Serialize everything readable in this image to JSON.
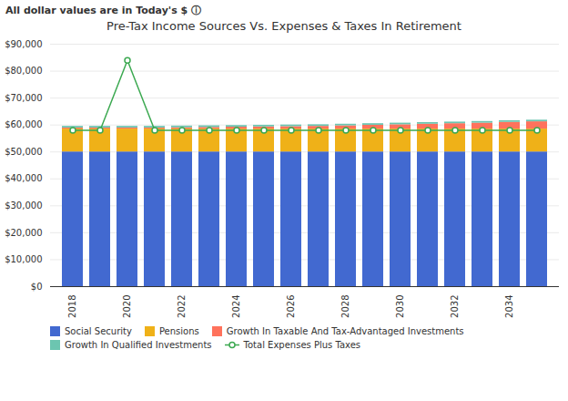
{
  "chart_data": {
    "type": "bar",
    "title": "Pre-Tax Income Sources Vs. Expenses & Taxes In Retirement",
    "subtitle": "All dollar values are in Today's $ ⓘ",
    "categories": [
      "2018",
      null,
      "2020",
      null,
      "2022",
      null,
      "2024",
      null,
      "2026",
      null,
      "2028",
      null,
      "2030",
      null,
      "2032",
      null,
      "2034",
      null
    ],
    "stacked": true,
    "series": [
      {
        "name": "Social Security",
        "type": "bar",
        "values": [
          50000,
          50000,
          50000,
          50000,
          50000,
          50000,
          50000,
          50000,
          50000,
          50000,
          50000,
          50000,
          50000,
          50000,
          50000,
          50000,
          50000,
          50000
        ]
      },
      {
        "name": "Pensions",
        "type": "bar",
        "values": [
          8500,
          8500,
          8500,
          8500,
          8500,
          8500,
          8500,
          8500,
          8500,
          8500,
          8500,
          8500,
          8500,
          8500,
          8500,
          8500,
          8500,
          8500
        ]
      },
      {
        "name": "Growth In Taxable And Tax-Advantaged Investments",
        "type": "bar",
        "values": [
          400,
          400,
          400,
          400,
          500,
          600,
          700,
          800,
          900,
          1000,
          1200,
          1400,
          1600,
          1800,
          2000,
          2200,
          2500,
          2700
        ]
      },
      {
        "name": "Growth In Qualified Investments",
        "type": "bar",
        "values": [
          600,
          600,
          600,
          600,
          600,
          600,
          600,
          600,
          600,
          600,
          600,
          600,
          600,
          600,
          600,
          600,
          600,
          600
        ]
      },
      {
        "name": "Total Expenses Plus Taxes",
        "type": "line",
        "marker": "circle",
        "values": [
          58000,
          58000,
          84000,
          58000,
          58000,
          58000,
          58000,
          58000,
          58000,
          58000,
          58000,
          58000,
          58000,
          58000,
          58000,
          58000,
          58000,
          58000
        ]
      }
    ],
    "ylim": [
      0,
      90000
    ],
    "yticks": [
      {
        "value": 0,
        "label": "$0"
      },
      {
        "value": 10000,
        "label": "$10,000"
      },
      {
        "value": 20000,
        "label": "$20,000"
      },
      {
        "value": 30000,
        "label": "$30,000"
      },
      {
        "value": 40000,
        "label": "$40,000"
      },
      {
        "value": 50000,
        "label": "$50,000"
      },
      {
        "value": 60000,
        "label": "$60,000"
      },
      {
        "value": 70000,
        "label": "$70,000"
      },
      {
        "value": 80000,
        "label": "$80,000"
      },
      {
        "value": 90000,
        "label": "$90,000"
      }
    ],
    "grid": true,
    "legend": "bottom"
  }
}
